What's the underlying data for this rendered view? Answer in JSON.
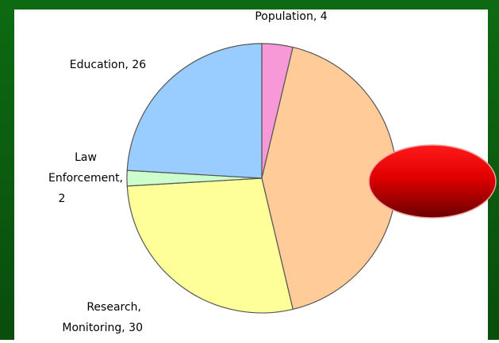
{
  "chart_data": {
    "type": "pie",
    "values": [
      4,
      46,
      30,
      2,
      26
    ],
    "value_labels": [
      [
        "Population, 4"
      ],
      null,
      [
        "Research,",
        "Monitoring, 30"
      ],
      [
        "Law",
        "Enforcement,",
        "2"
      ],
      [
        "Education, 26"
      ]
    ],
    "colors": [
      "#f799d6",
      "#ffcc99",
      "#ffff99",
      "#ccffcc",
      "#99ccff"
    ]
  }
}
